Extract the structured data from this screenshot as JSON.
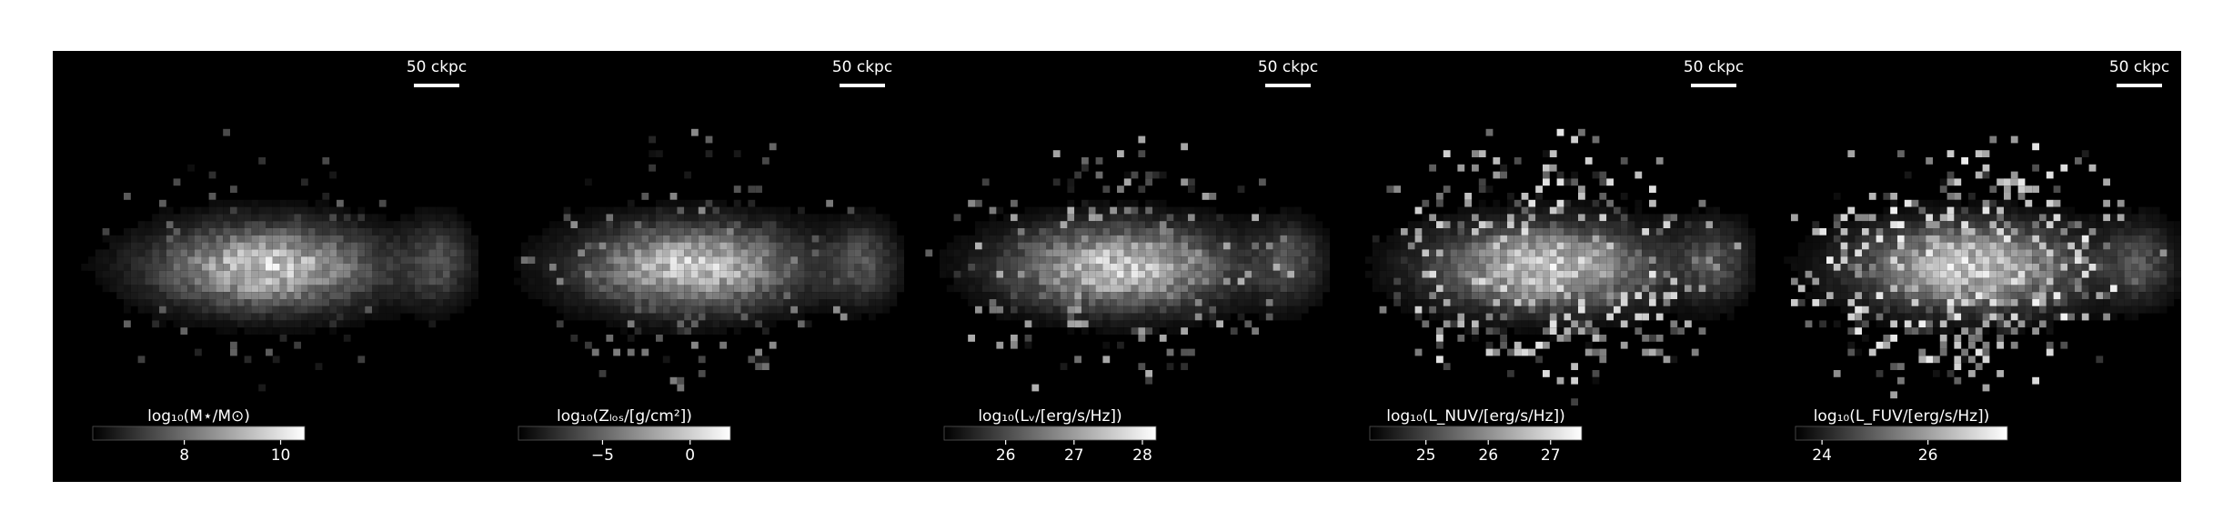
{
  "panels": [
    {
      "scalebar_label": "50 ckpc",
      "colorbar_label": "log₁₀(M⋆/M⊙)",
      "cmap": "gray",
      "clim": [
        6.1,
        10.5
      ],
      "ticks": [
        8,
        10
      ],
      "noise": 0.15
    },
    {
      "scalebar_label": "50 ckpc",
      "colorbar_label": "log₁₀(Zₗₒₛ/[g/cm²])",
      "cmap": "gray",
      "clim": [
        -9.8,
        2.3
      ],
      "ticks": [
        {
          "value": -5,
          "label": "−5"
        },
        0
      ],
      "noise": 0.3
    },
    {
      "scalebar_label": "50 ckpc",
      "colorbar_label": "log₁₀(Lᵥ/[erg/s/Hz])",
      "cmap": "gray",
      "clim": [
        25.1,
        28.2
      ],
      "ticks": [
        26,
        27,
        28
      ],
      "noise": 0.45
    },
    {
      "scalebar_label": "50 ckpc",
      "colorbar_label": "log₁₀(L_NUV/[erg/s/Hz])",
      "cmap": "gray",
      "clim": [
        24.1,
        27.5
      ],
      "ticks": [
        25,
        26,
        27
      ],
      "noise": 0.65
    },
    {
      "scalebar_label": "50 ckpc",
      "colorbar_label": "log₁₀(L_FUV/[erg/s/Hz])",
      "cmap": "gray",
      "clim": [
        23.5,
        27.5
      ],
      "ticks": [
        24,
        26
      ],
      "noise": 0.7
    }
  ]
}
